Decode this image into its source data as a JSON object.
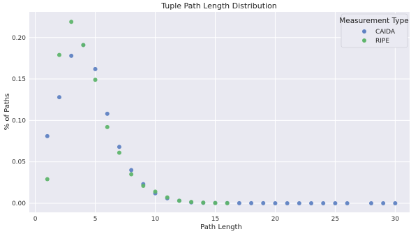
{
  "chart_data": {
    "type": "scatter",
    "title": "Tuple Path Length Distribution",
    "xlabel": "Path Length",
    "ylabel": "% of Paths",
    "xlim": [
      -0.5,
      31.2
    ],
    "ylim": [
      -0.011,
      0.231
    ],
    "xticks": [
      0,
      5,
      10,
      15,
      20,
      25,
      30
    ],
    "yticks": [
      0.0,
      0.05,
      0.1,
      0.15,
      0.2
    ],
    "xtick_labels": [
      "0",
      "5",
      "10",
      "15",
      "20",
      "25",
      "30"
    ],
    "ytick_labels": [
      "0.00",
      "0.05",
      "0.10",
      "0.15",
      "0.20"
    ],
    "grid": true,
    "legend": {
      "title": "Measurement Type",
      "placement": "top-right"
    },
    "series": [
      {
        "name": "CAIDA",
        "color": "#5f82c2",
        "x": [
          1,
          2,
          3,
          4,
          5,
          6,
          7,
          8,
          9,
          10,
          11,
          12,
          13,
          14,
          15,
          16,
          17,
          18,
          19,
          20,
          21,
          22,
          23,
          24,
          25,
          26,
          28,
          29,
          30
        ],
        "y": [
          0.081,
          0.128,
          0.178,
          0.191,
          0.162,
          0.108,
          0.068,
          0.04,
          0.023,
          0.012,
          0.006,
          0.003,
          0.001,
          0.0005,
          0.0003,
          0.0002,
          0.0001,
          0.0001,
          0.0001,
          0.0,
          0.0,
          0.0,
          0.0,
          0.0,
          0.0,
          0.0,
          0.0,
          0.0,
          0.0
        ]
      },
      {
        "name": "RIPE",
        "color": "#5fb56b",
        "x": [
          1,
          2,
          3,
          4,
          5,
          6,
          7,
          8,
          9,
          10,
          11,
          12,
          13,
          14,
          15,
          16
        ],
        "y": [
          0.029,
          0.179,
          0.219,
          0.191,
          0.149,
          0.092,
          0.061,
          0.035,
          0.021,
          0.014,
          0.007,
          0.003,
          0.0015,
          0.0007,
          0.0003,
          0.0001
        ]
      }
    ]
  }
}
